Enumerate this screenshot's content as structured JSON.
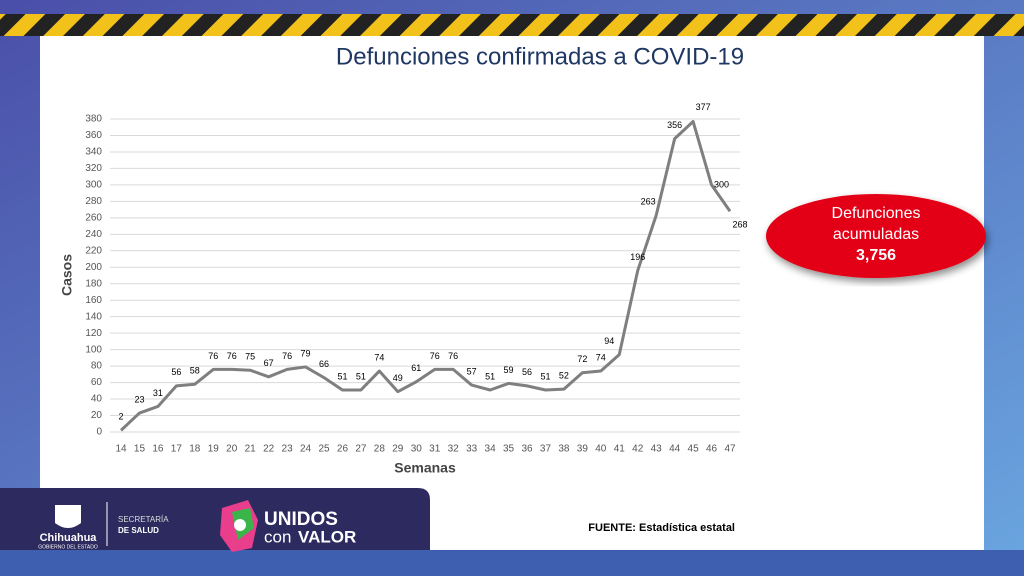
{
  "chart_data": {
    "type": "line",
    "title": "Defunciones confirmadas a COVID-19",
    "x_label": "Semanas",
    "y_label": "Casos",
    "categories": [
      "14",
      "15",
      "16",
      "17",
      "18",
      "19",
      "20",
      "21",
      "22",
      "23",
      "24",
      "25",
      "26",
      "27",
      "28",
      "29",
      "30",
      "31",
      "32",
      "33",
      "34",
      "35",
      "36",
      "37",
      "38",
      "39",
      "40",
      "41",
      "42",
      "43",
      "44",
      "45",
      "46",
      "47"
    ],
    "values": [
      2,
      23,
      31,
      56,
      58,
      76,
      76,
      75,
      67,
      76,
      79,
      66,
      51,
      51,
      74,
      49,
      61,
      76,
      76,
      57,
      51,
      59,
      56,
      51,
      52,
      72,
      74,
      94,
      196,
      263,
      356,
      377,
      300,
      268
    ],
    "color": "#7f7f7f",
    "ylim": [
      0,
      380
    ],
    "yticks": [
      0,
      20,
      40,
      60,
      80,
      100,
      120,
      140,
      160,
      180,
      200,
      220,
      240,
      260,
      280,
      300,
      320,
      340,
      360,
      380
    ],
    "grid": true
  },
  "callout": {
    "lines": [
      "Defunciones",
      "acumuladas"
    ],
    "total": "3,756"
  },
  "source": "FUENTE: Estadística estatal",
  "branding": {
    "state": "Chihuahua",
    "state_sub": "GOBIERNO DEL ESTADO",
    "dept_1": "SECRETARÍA",
    "dept_2": "DE SALUD",
    "slogan_1": "UNIDOS",
    "slogan_2": "con",
    "slogan_3": "VALOR"
  }
}
